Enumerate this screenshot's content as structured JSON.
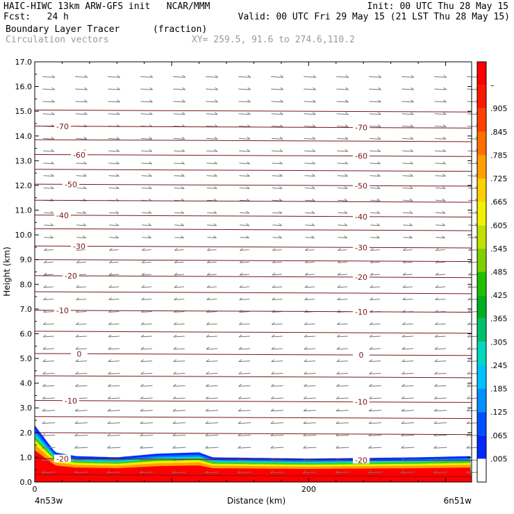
{
  "header": {
    "line1_left": "HAIC-HIWC 13km ARW-GFS init   NCAR/MMM",
    "line1_right": "Init: 00 UTC Thu 28 May 15",
    "line2_left": "Fcst:   24 h",
    "line2_right": "Valid: 00 UTC Fri 29 May 15 (21 LST Thu 28 May 15)",
    "line3_left": "Boundary Layer Tracer",
    "line3_units": "(fraction)",
    "line4_left": "Circulation vectors",
    "line4_xy": "XY= 259.5, 91.6 to 274.6,110.2"
  },
  "chart_data": {
    "type": "heatmap",
    "xlabel": "Distance (km)",
    "ylabel": "Height (km)",
    "x_tick_labels": [
      "0",
      "200"
    ],
    "x_ticks": [
      0,
      200
    ],
    "x_range": [
      0,
      319
    ],
    "y_range": [
      0,
      17
    ],
    "y_tick_labels": [
      "0.0",
      "1.0",
      "2.0",
      "3.0",
      "4.0",
      "5.0",
      "6.0",
      "7.0",
      "8.0",
      "9.0",
      "10.0",
      "11.0",
      "12.0",
      "13.0",
      "14.0",
      "15.0",
      "16.0",
      "17.0"
    ],
    "left_endpoint_label": "4n53w",
    "right_endpoint_label": "6n51w",
    "colorbar": {
      "labels": [
        ".005",
        ".065",
        ".125",
        ".185",
        ".245",
        ".305",
        ".365",
        ".425",
        ".485",
        ".545",
        ".605",
        ".665",
        ".725",
        ".785",
        ".845",
        ".905",
        "–"
      ],
      "colors": [
        "#ffffff",
        "#0028ff",
        "#0050ff",
        "#0090ff",
        "#00c0ff",
        "#00d8c0",
        "#00c070",
        "#00b020",
        "#20c000",
        "#80d000",
        "#c0e000",
        "#f0f000",
        "#ffd000",
        "#ffa000",
        "#ff7000",
        "#ff4000",
        "#ff1800",
        "#ff0000"
      ]
    },
    "contours": {
      "color": "#7a1414",
      "lines": [
        {
          "label": "-20",
          "height_km": 0.95
        },
        {
          "label": "-10",
          "height_km": 3.3
        },
        {
          "label": "0",
          "height_km": 5.2
        },
        {
          "label": "-10",
          "height_km": 6.95
        },
        {
          "label": "-20",
          "height_km": 8.35
        },
        {
          "label": "-30",
          "height_km": 9.55
        },
        {
          "label": "-40",
          "height_km": 10.8
        },
        {
          "label": "-50",
          "height_km": 12.05
        },
        {
          "label": "-60",
          "height_km": 13.25
        },
        {
          "label": "-70",
          "height_km": 14.4
        }
      ],
      "extra_heights_km": [
        0.3,
        2.0,
        2.65,
        4.3,
        6.1,
        7.7,
        9.0,
        10.25,
        11.4,
        12.65,
        13.85,
        15.05
      ]
    },
    "tracer_profile": {
      "x_km": [
        0,
        15,
        30,
        60,
        90,
        120,
        130,
        200,
        280,
        319
      ],
      "top_km": [
        2.3,
        1.2,
        1.05,
        1.0,
        1.15,
        1.2,
        1.0,
        0.95,
        1.0,
        1.05
      ]
    }
  }
}
